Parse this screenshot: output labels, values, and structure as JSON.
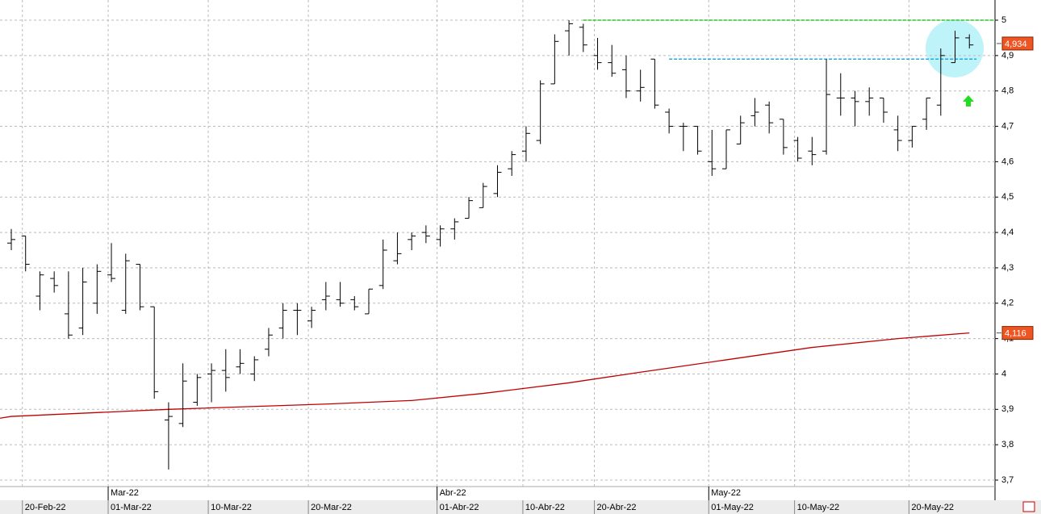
{
  "chart_data": {
    "type": "ohlc",
    "categories": [
      null,
      "20-Feb-22",
      null,
      null,
      null,
      null,
      null,
      "01-Mar-22",
      null,
      null,
      null,
      null,
      null,
      null,
      "10-Mar-22",
      null,
      null,
      null,
      null,
      null,
      null,
      "20-Mar-22",
      null,
      null,
      null,
      null,
      null,
      null,
      null,
      null,
      "01-Abr-22",
      null,
      null,
      null,
      null,
      null,
      "10-Abr-22",
      null,
      null,
      null,
      null,
      "20-Abr-22",
      null,
      null,
      null,
      null,
      null,
      null,
      null,
      "01-May-22",
      null,
      null,
      null,
      null,
      null,
      "10-May-22",
      null,
      null,
      null,
      null,
      null,
      null,
      null,
      "20-May-22",
      null,
      null,
      null,
      null
    ],
    "months": [
      null,
      null,
      null,
      null,
      null,
      null,
      null,
      "Mar-22",
      null,
      null,
      null,
      null,
      null,
      null,
      null,
      null,
      null,
      null,
      null,
      null,
      null,
      null,
      null,
      null,
      null,
      null,
      null,
      null,
      null,
      null,
      "Abr-22",
      null,
      null,
      null,
      null,
      null,
      null,
      null,
      null,
      null,
      null,
      null,
      null,
      null,
      null,
      null,
      null,
      null,
      null,
      "May-22",
      null,
      null,
      null,
      null,
      null,
      null,
      null,
      null,
      null,
      null,
      null,
      null,
      null,
      null,
      null,
      null,
      null,
      null
    ],
    "open": [
      4.37,
      4.39,
      4.22,
      4.27,
      4.17,
      4.13,
      4.2,
      4.28,
      4.18,
      4.31,
      4.19,
      3.87,
      3.86,
      3.92,
      4.0,
      4.01,
      4.02,
      4.0,
      4.07,
      4.13,
      4.18,
      4.15,
      4.21,
      4.21,
      4.21,
      4.17,
      4.25,
      4.32,
      4.38,
      4.4,
      4.38,
      4.41,
      4.44,
      4.47,
      4.51,
      4.58,
      4.63,
      4.66,
      4.82,
      4.97,
      4.98,
      4.9,
      4.88,
      4.86,
      4.8,
      4.89,
      4.74,
      4.7,
      4.7,
      4.6,
      4.58,
      4.65,
      4.73,
      4.76,
      4.72,
      4.66,
      4.63,
      4.63,
      4.78,
      4.78,
      4.77,
      4.78,
      4.69,
      4.66,
      4.72,
      4.76,
      4.88,
      4.95
    ],
    "high": [
      4.41,
      4.39,
      4.29,
      4.29,
      4.29,
      4.3,
      4.31,
      4.37,
      4.34,
      4.31,
      4.19,
      3.92,
      4.03,
      4.0,
      4.03,
      4.07,
      4.07,
      4.05,
      4.13,
      4.2,
      4.2,
      4.19,
      4.26,
      4.26,
      4.22,
      4.24,
      4.38,
      4.4,
      4.4,
      4.42,
      4.42,
      4.44,
      4.5,
      4.54,
      4.59,
      4.63,
      4.7,
      4.83,
      4.96,
      5.0,
      4.99,
      4.95,
      4.93,
      4.9,
      4.86,
      4.89,
      4.75,
      4.71,
      4.7,
      4.69,
      4.69,
      4.73,
      4.78,
      4.77,
      4.72,
      4.67,
      4.67,
      4.89,
      4.85,
      4.8,
      4.81,
      4.78,
      4.73,
      4.7,
      4.78,
      4.92,
      4.97,
      4.96
    ],
    "low": [
      4.35,
      4.29,
      4.18,
      4.23,
      4.1,
      4.11,
      4.17,
      4.26,
      4.17,
      4.18,
      3.93,
      3.73,
      3.85,
      3.91,
      3.92,
      3.95,
      4.0,
      3.98,
      4.05,
      4.1,
      4.11,
      4.13,
      4.18,
      4.19,
      4.18,
      4.17,
      4.24,
      4.31,
      4.35,
      4.37,
      4.36,
      4.38,
      4.44,
      4.47,
      4.5,
      4.56,
      4.6,
      4.65,
      4.82,
      4.9,
      4.91,
      4.86,
      4.84,
      4.78,
      4.77,
      4.75,
      4.68,
      4.63,
      4.62,
      4.56,
      4.58,
      4.65,
      4.7,
      4.68,
      4.62,
      4.6,
      4.59,
      4.62,
      4.73,
      4.7,
      4.73,
      4.71,
      4.63,
      4.64,
      4.69,
      4.73,
      4.88,
      4.92
    ],
    "close": [
      4.38,
      4.31,
      4.28,
      4.25,
      4.11,
      4.26,
      4.29,
      4.27,
      4.32,
      4.19,
      3.95,
      3.88,
      3.98,
      3.99,
      4.01,
      3.99,
      4.03,
      4.04,
      4.11,
      4.18,
      4.18,
      4.18,
      4.22,
      4.2,
      4.19,
      4.24,
      4.35,
      4.34,
      4.39,
      4.39,
      4.41,
      4.43,
      4.49,
      4.53,
      4.57,
      4.62,
      4.68,
      4.82,
      4.94,
      4.99,
      4.93,
      4.88,
      4.85,
      4.8,
      4.81,
      4.76,
      4.7,
      4.7,
      4.63,
      4.58,
      4.69,
      4.71,
      4.74,
      4.71,
      4.64,
      4.61,
      4.62,
      4.79,
      4.78,
      4.77,
      4.78,
      4.74,
      4.66,
      4.7,
      4.78,
      4.9,
      4.95,
      4.93
    ],
    "color": "#000000",
    "moving_average": {
      "color": "#c00000",
      "x": [
        -0.8,
        0,
        11,
        22,
        28,
        33,
        39,
        44,
        50,
        56,
        62,
        67
      ],
      "values": [
        3.875,
        3.88,
        3.9,
        3.915,
        3.925,
        3.945,
        3.975,
        4.005,
        4.04,
        4.075,
        4.1,
        4.116
      ]
    },
    "levels": [
      {
        "value": 5.0,
        "from": 40,
        "to": 68.7,
        "color": "#22cc22"
      },
      {
        "value": 4.89,
        "from": 46,
        "to": 67.5,
        "color": "#22aadd"
      }
    ],
    "price_labels": [
      {
        "value": 4.934,
        "label": "4,934"
      },
      {
        "value": 4.116,
        "label": "4,116"
      }
    ],
    "ylim": [
      3.675,
      5.055
    ],
    "yticks": [
      {
        "value": 3.7,
        "label": "3,7"
      },
      {
        "value": 3.8,
        "label": "3,8"
      },
      {
        "value": 3.9,
        "label": "3,9"
      },
      4,
      {
        "value": 4.1,
        "label": "4,1"
      },
      {
        "value": 4.2,
        "label": "4,2"
      },
      {
        "value": 4.3,
        "label": "4,3"
      },
      {
        "value": 4.4,
        "label": "4,4"
      },
      {
        "value": 4.5,
        "label": "4,5"
      },
      {
        "value": 4.6,
        "label": "4,6"
      },
      {
        "value": 4.7,
        "label": "4,7"
      },
      {
        "value": 4.8,
        "label": "4,8"
      },
      {
        "value": 4.9,
        "label": "4,9"
      },
      5
    ],
    "grid": true
  }
}
